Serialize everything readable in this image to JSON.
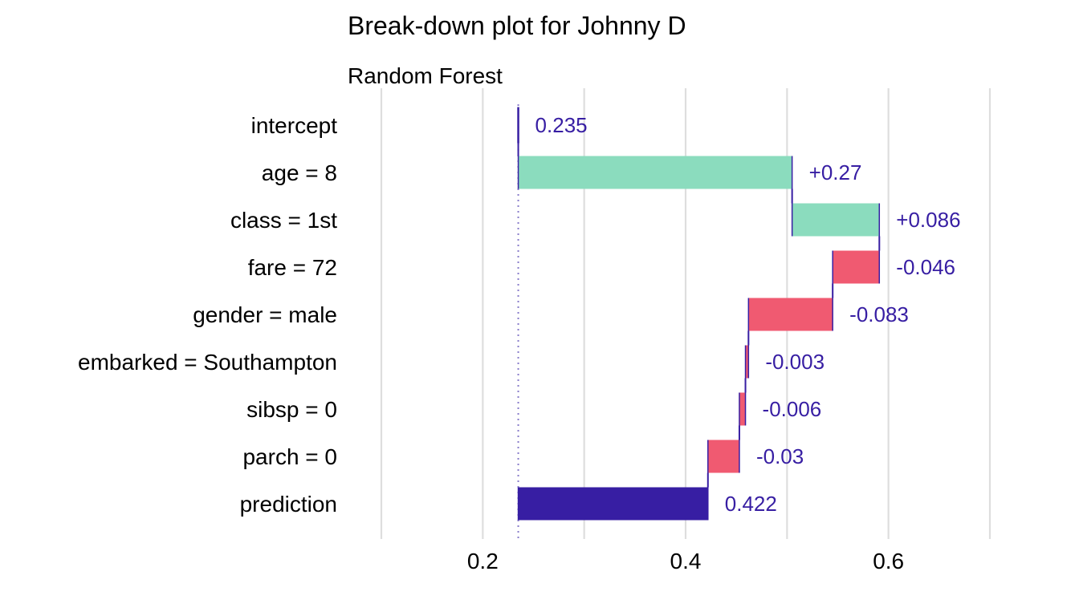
{
  "title": "Break-down plot for Johnny D",
  "subtitle": "Random Forest",
  "colors": {
    "positive": "#8bdcbe",
    "negative": "#f05a71",
    "prediction": "#371ea3",
    "connector": "#371ea3",
    "label": "#371ea3",
    "grid": "#dedede",
    "baseline": "#8a7ecb"
  },
  "chart_data": {
    "type": "bar",
    "orientation": "horizontal",
    "style": "waterfall",
    "title": "Break-down plot for Johnny D",
    "subtitle": "Random Forest",
    "xlim": [
      0.1,
      0.7
    ],
    "xticks": [
      0.2,
      0.4,
      0.6
    ],
    "xtick_labels": [
      "0.2",
      "0.4",
      "0.6"
    ],
    "grid": true,
    "baseline": 0.235,
    "categories": [
      "intercept",
      "age = 8",
      "class = 1st",
      "fare = 72",
      "gender = male",
      "embarked = Southampton",
      "sibsp = 0",
      "parch = 0",
      "prediction"
    ],
    "contributions": [
      0.235,
      0.27,
      0.086,
      -0.046,
      -0.083,
      -0.003,
      -0.006,
      -0.03,
      0.422
    ],
    "starts": [
      0.235,
      0.235,
      0.505,
      0.591,
      0.545,
      0.462,
      0.459,
      0.453,
      0.235
    ],
    "ends": [
      0.235,
      0.505,
      0.591,
      0.545,
      0.462,
      0.459,
      0.453,
      0.422,
      0.422
    ],
    "kinds": [
      "intercept",
      "positive",
      "positive",
      "negative",
      "negative",
      "negative",
      "negative",
      "negative",
      "prediction"
    ],
    "value_labels": [
      "0.235",
      "+0.27",
      "+0.086",
      "-0.046",
      "-0.083",
      "-0.003",
      "-0.006",
      "-0.03",
      "0.422"
    ]
  }
}
